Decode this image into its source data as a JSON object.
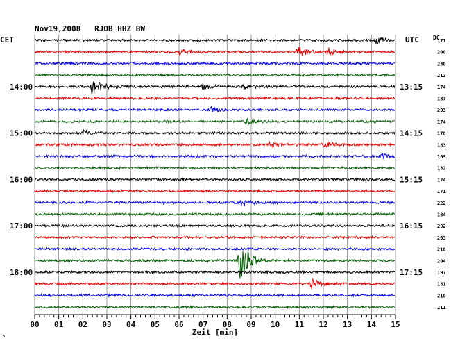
{
  "header": {
    "title": "Nov19,2008   RJOB HHZ BW",
    "left_tz": "CET",
    "right_tz": "UTC",
    "dc_label": "DC"
  },
  "footer": {
    "xlabel": "Zeit [min]",
    "corner_mark": "∧"
  },
  "colors": {
    "trace_cycle": [
      "#000000",
      "#e00000",
      "#0000e0",
      "#006000"
    ],
    "grid": "#808080",
    "background": "#ffffff"
  },
  "chart_data": {
    "type": "line",
    "title": "Nov19,2008   RJOB HHZ BW",
    "xlabel": "Zeit [min]",
    "ylabel": "",
    "xlim": [
      0,
      15
    ],
    "x_ticks": [
      "00",
      "01",
      "02",
      "03",
      "04",
      "05",
      "06",
      "07",
      "08",
      "09",
      "10",
      "11",
      "12",
      "13",
      "14",
      "15"
    ],
    "trace_count": 24,
    "left_time_labels": [
      {
        "trace": 4,
        "label": "14:00"
      },
      {
        "trace": 8,
        "label": "15:00"
      },
      {
        "trace": 12,
        "label": "16:00"
      },
      {
        "trace": 16,
        "label": "17:00"
      },
      {
        "trace": 20,
        "label": "18:00"
      }
    ],
    "right_time_labels": [
      {
        "trace": 0,
        "label": "UTC"
      },
      {
        "trace": 4,
        "label": "13:15"
      },
      {
        "trace": 8,
        "label": "14:15"
      },
      {
        "trace": 12,
        "label": "15:15"
      },
      {
        "trace": 16,
        "label": "16:15"
      },
      {
        "trace": 20,
        "label": "17:15"
      }
    ],
    "dc_values": [
      171,
      200,
      230,
      213,
      174,
      187,
      203,
      174,
      178,
      183,
      169,
      132,
      174,
      171,
      222,
      184,
      202,
      203,
      218,
      204,
      197,
      181,
      210,
      211
    ],
    "events": [
      {
        "trace": 0,
        "minute": 14.2,
        "amplitude": 5
      },
      {
        "trace": 1,
        "minute": 6.0,
        "amplitude": 4
      },
      {
        "trace": 1,
        "minute": 10.9,
        "amplitude": 9
      },
      {
        "trace": 1,
        "minute": 12.2,
        "amplitude": 5
      },
      {
        "trace": 4,
        "minute": 2.4,
        "amplitude": 12
      },
      {
        "trace": 4,
        "minute": 7.0,
        "amplitude": 4
      },
      {
        "trace": 4,
        "minute": 8.7,
        "amplitude": 3
      },
      {
        "trace": 6,
        "minute": 7.3,
        "amplitude": 4
      },
      {
        "trace": 7,
        "minute": 8.8,
        "amplitude": 3
      },
      {
        "trace": 8,
        "minute": 2.0,
        "amplitude": 3
      },
      {
        "trace": 9,
        "minute": 9.8,
        "amplitude": 4
      },
      {
        "trace": 9,
        "minute": 12.0,
        "amplitude": 4
      },
      {
        "trace": 10,
        "minute": 14.4,
        "amplitude": 4
      },
      {
        "trace": 14,
        "minute": 8.6,
        "amplitude": 5
      },
      {
        "trace": 19,
        "minute": 8.5,
        "amplitude": 30
      },
      {
        "trace": 21,
        "minute": 11.5,
        "amplitude": 7
      }
    ]
  }
}
